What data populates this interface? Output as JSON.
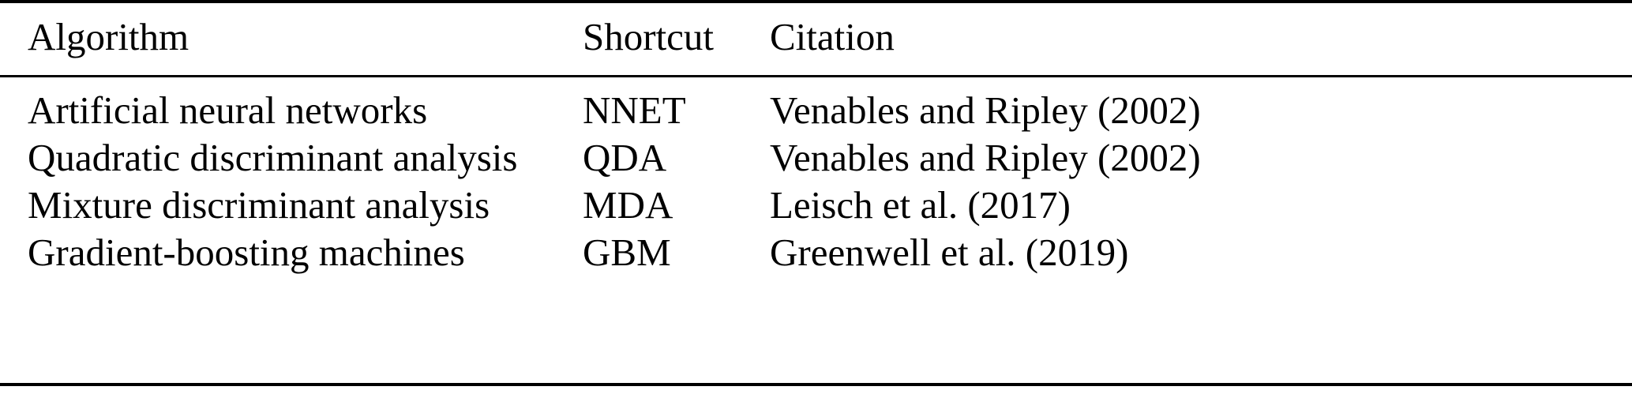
{
  "table": {
    "headers": [
      "Algorithm",
      "Shortcut",
      "Citation"
    ],
    "rows": [
      [
        "Artificial neural networks",
        "NNET",
        "Venables and Ripley (2002)"
      ],
      [
        "Quadratic discriminant analysis",
        "QDA",
        "Venables and Ripley (2002)"
      ],
      [
        "Mixture discriminant analysis",
        "MDA",
        "Leisch et al. (2017)"
      ],
      [
        "Gradient-boosting machines",
        "GBM",
        "Greenwell et al. (2019)"
      ]
    ]
  }
}
